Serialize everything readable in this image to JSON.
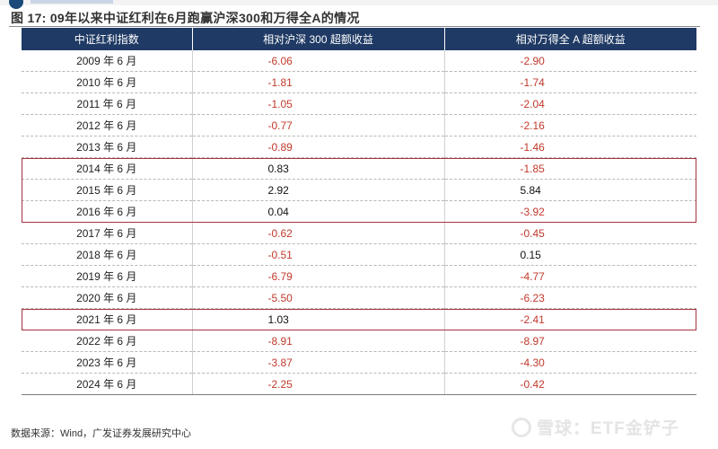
{
  "figure": {
    "title": "图 17:  09年以来中证红利在6月跑赢沪深300和万得全A的情况"
  },
  "table": {
    "columns": [
      "中证红利指数",
      "相对沪深 300 超额收益",
      "相对万得全 A 超额收益"
    ],
    "rows": [
      {
        "period": "2009 年 6 月",
        "vs_hs300": "-6.06",
        "vs_wind_a": "-2.90"
      },
      {
        "period": "2010 年 6 月",
        "vs_hs300": "-1.81",
        "vs_wind_a": "-1.74"
      },
      {
        "period": "2011 年 6 月",
        "vs_hs300": "-1.05",
        "vs_wind_a": "-2.04"
      },
      {
        "period": "2012 年 6 月",
        "vs_hs300": "-0.77",
        "vs_wind_a": "-2.16"
      },
      {
        "period": "2013 年 6 月",
        "vs_hs300": "-0.89",
        "vs_wind_a": "-1.46"
      },
      {
        "period": "2014 年 6 月",
        "vs_hs300": "0.83",
        "vs_wind_a": "-1.85"
      },
      {
        "period": "2015 年 6 月",
        "vs_hs300": "2.92",
        "vs_wind_a": "5.84"
      },
      {
        "period": "2016 年 6 月",
        "vs_hs300": "0.04",
        "vs_wind_a": "-3.92"
      },
      {
        "period": "2017 年 6 月",
        "vs_hs300": "-0.62",
        "vs_wind_a": "-0.45"
      },
      {
        "period": "2018 年 6 月",
        "vs_hs300": "-0.51",
        "vs_wind_a": "0.15"
      },
      {
        "period": "2019 年 6 月",
        "vs_hs300": "-6.79",
        "vs_wind_a": "-4.77"
      },
      {
        "period": "2020 年 6 月",
        "vs_hs300": "-5.50",
        "vs_wind_a": "-6.23"
      },
      {
        "period": "2021 年 6 月",
        "vs_hs300": "1.03",
        "vs_wind_a": "-2.41"
      },
      {
        "period": "2022 年 6 月",
        "vs_hs300": "-8.91",
        "vs_wind_a": "-8.97"
      },
      {
        "period": "2023 年 6 月",
        "vs_hs300": "-3.87",
        "vs_wind_a": "-4.30"
      },
      {
        "period": "2024 年 6 月",
        "vs_hs300": "-2.25",
        "vs_wind_a": "-0.42"
      }
    ],
    "highlighted_periods": [
      "2014 年 6 月",
      "2015 年 6 月",
      "2016 年 6 月",
      "2021 年 6 月"
    ]
  },
  "colors": {
    "header_bg": "#1f3a64",
    "negative_text": "#c0392b",
    "positive_text": "#111111",
    "highlight_border": "#a8313f"
  },
  "footer": {
    "source": "数据来源：Wind，广发证券发展研究中心",
    "watermark": "雪球：ETF金铲子"
  }
}
